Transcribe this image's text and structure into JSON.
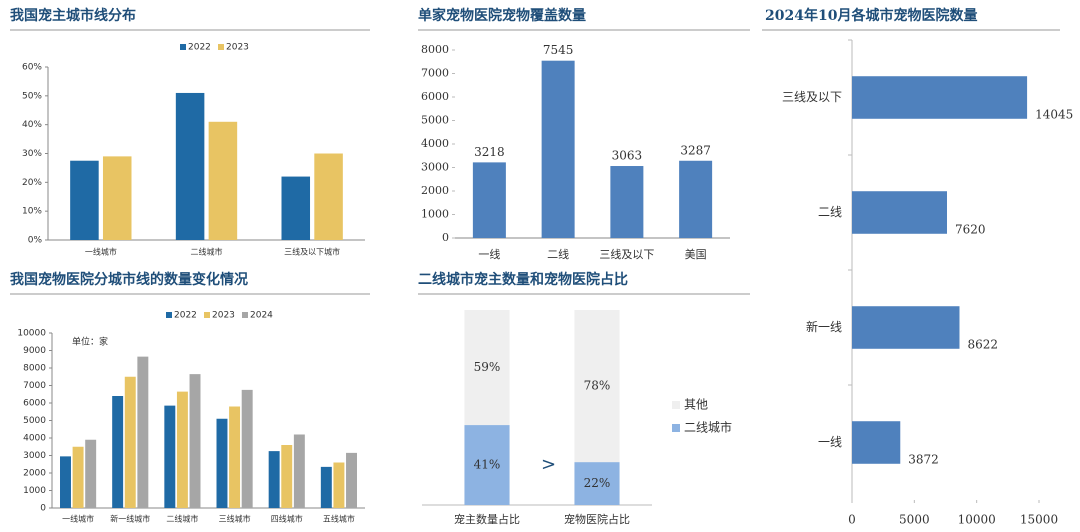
{
  "chart_data": [
    {
      "type": "bar",
      "title": "我国宠主城市线分布",
      "categories": [
        "一线城市",
        "二线城市",
        "三线及以下城市"
      ],
      "series": [
        {
          "name": "2022",
          "color": "#1f6aa5",
          "values": [
            27.5,
            51,
            22
          ]
        },
        {
          "name": "2023",
          "color": "#e8c463",
          "values": [
            29,
            41,
            30
          ]
        }
      ],
      "ylim": [
        0,
        60
      ],
      "yticks": [
        {
          "value": 0,
          "label": "0%"
        },
        {
          "value": 10,
          "label": "10%"
        },
        {
          "value": 20,
          "label": "20%"
        },
        {
          "value": 30,
          "label": "30%"
        },
        {
          "value": 40,
          "label": "40%"
        },
        {
          "value": 50,
          "label": "50%"
        },
        {
          "value": 60,
          "label": "60%"
        }
      ]
    },
    {
      "type": "bar",
      "title": "单家宠物医院宠物覆盖数量",
      "categories": [
        "一线",
        "二线",
        "三线及以下",
        "美国"
      ],
      "values": [
        3218,
        7545,
        3063,
        3287
      ],
      "color": "#4f81bd",
      "ylim": [
        0,
        8000
      ],
      "yticks": [
        0,
        1000,
        2000,
        3000,
        4000,
        5000,
        6000,
        7000,
        8000
      ]
    },
    {
      "type": "hbar",
      "title": "2024年10月各城市宠物医院数量",
      "categories": [
        "三线及以下",
        "二线",
        "新一线",
        "一线"
      ],
      "values": [
        14045,
        7620,
        8622,
        3872
      ],
      "color": "#4f81bd",
      "xlim": [
        0,
        15000
      ],
      "xticks": [
        0,
        5000,
        10000,
        15000
      ]
    },
    {
      "type": "bar",
      "title": "我国宠物医院分城市线的数量变化情况",
      "annotation": "单位：家",
      "categories": [
        "一线城市",
        "新一线城市",
        "二线城市",
        "三线城市",
        "四线城市",
        "五线城市"
      ],
      "series": [
        {
          "name": "2022",
          "color": "#1f6aa5",
          "values": [
            2950,
            6400,
            5850,
            5100,
            3250,
            2350
          ]
        },
        {
          "name": "2023",
          "color": "#e8c463",
          "values": [
            3500,
            7500,
            6650,
            5800,
            3600,
            2600
          ]
        },
        {
          "name": "2024",
          "color": "#a6a6a6",
          "values": [
            3900,
            8650,
            7650,
            6750,
            4200,
            3150
          ]
        }
      ],
      "ylim": [
        0,
        10000
      ],
      "yticks": [
        0,
        1000,
        2000,
        3000,
        4000,
        5000,
        6000,
        7000,
        8000,
        9000,
        10000
      ]
    },
    {
      "type": "stacked_bar",
      "title": "二线城市宠主数量和宠物医院占比",
      "annotation": ">",
      "categories": [
        "宠主数量占比",
        "宠物医院占比"
      ],
      "series": [
        {
          "name": "二线城市",
          "color": "#8db3e2",
          "values": [
            41,
            22
          ],
          "value_labels": [
            "41%",
            "22%"
          ]
        },
        {
          "name": "其他",
          "color": "#efefef",
          "values": [
            59,
            78
          ],
          "value_labels": [
            "59%",
            "78%"
          ]
        }
      ],
      "ylim": [
        0,
        100
      ]
    }
  ]
}
